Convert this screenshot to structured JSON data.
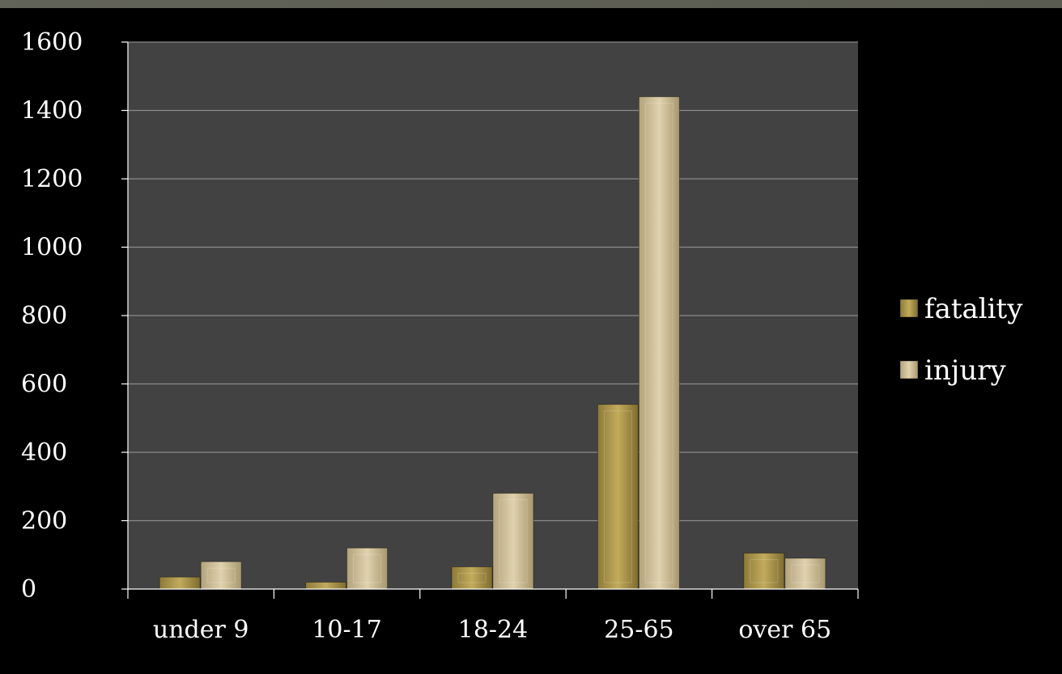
{
  "chart_data": {
    "type": "bar",
    "title": "",
    "xlabel": "",
    "ylabel": "",
    "categories": [
      "under 9",
      "10-17",
      "18-24",
      "25-65",
      "over 65"
    ],
    "series": [
      {
        "name": "fatality",
        "values": [
          35,
          20,
          65,
          540,
          105
        ],
        "color": "#b09a4e"
      },
      {
        "name": "injury",
        "values": [
          80,
          120,
          280,
          1440,
          90
        ],
        "color": "#d4c49c"
      }
    ],
    "ylim": [
      0,
      1600
    ],
    "yticks": [
      0,
      200,
      400,
      600,
      800,
      1000,
      1200,
      1400,
      1600
    ],
    "grid": true,
    "legend_position": "right",
    "colors": {
      "plot_background": "#424242",
      "page_background": "#000000",
      "gridline": "#8a8a8a",
      "text": "#ffffff"
    }
  }
}
